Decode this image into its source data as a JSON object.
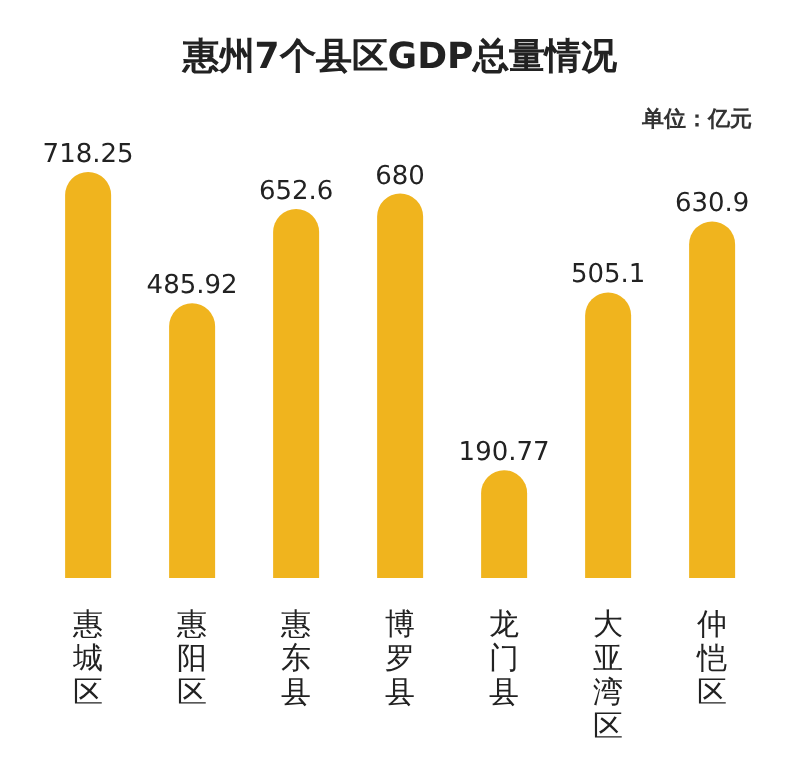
{
  "chart_data": {
    "type": "bar",
    "title": "惠州7个县区GDP总量情况",
    "annotations": [
      "单位：亿元"
    ],
    "categories": [
      "惠城区",
      "惠阳区",
      "惠东县",
      "博罗县",
      "龙门县",
      "大亚湾区",
      "仲恺区"
    ],
    "values": [
      718.25,
      485.92,
      652.6,
      680,
      190.77,
      505.1,
      630.9
    ],
    "color": "#f0b41e",
    "data_labels": true
  }
}
